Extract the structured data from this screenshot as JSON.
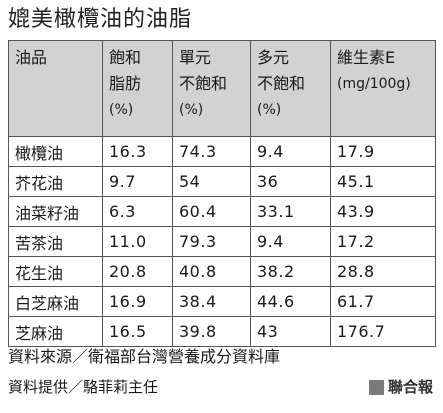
{
  "title": "媲美橄欖油的油脂",
  "table": {
    "headers": [
      {
        "lines": "油品",
        "unit": ""
      },
      {
        "lines": "飽和\n脂肪",
        "unit": "(%)"
      },
      {
        "lines": "單元\n不飽和",
        "unit": "(%)"
      },
      {
        "lines": "多元\n不飽和",
        "unit": "(%)"
      },
      {
        "lines": "維生素E",
        "unit": "(mg/100g)"
      }
    ],
    "rows": [
      [
        "橄欖油",
        "16.3",
        "74.3",
        "9.4",
        "17.9"
      ],
      [
        "芥花油",
        "9.7",
        "54",
        "36",
        "45.1"
      ],
      [
        "油菜籽油",
        "6.3",
        "60.4",
        "33.1",
        "43.9"
      ],
      [
        "苦茶油",
        "11.0",
        "79.3",
        "9.4",
        "17.2"
      ],
      [
        "花生油",
        "20.8",
        "40.8",
        "38.2",
        "28.8"
      ],
      [
        "白芝麻油",
        "16.9",
        "38.4",
        "44.6",
        "61.7"
      ],
      [
        "芝麻油",
        "16.5",
        "39.8",
        "43",
        "176.7"
      ]
    ]
  },
  "footer": {
    "source": "資料來源／衛福部台灣營養成分資料庫",
    "provider": "資料提供／駱菲莉主任",
    "brand": "聯合報"
  },
  "colors": {
    "header_bg": "#d2d2d2",
    "border": "#555555",
    "brand_square": "#7a7a7a"
  }
}
